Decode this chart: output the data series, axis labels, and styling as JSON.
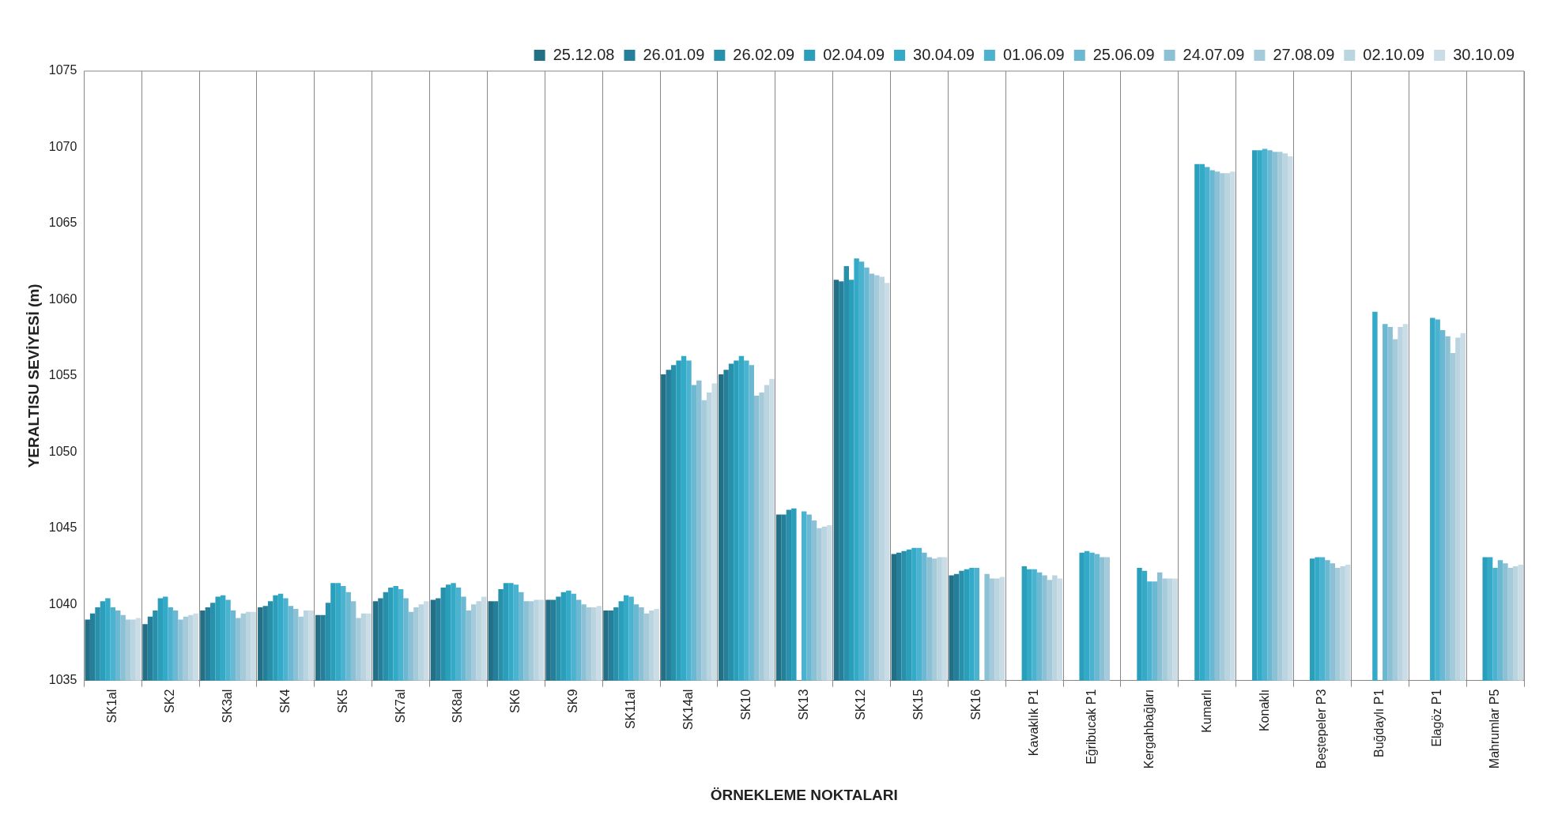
{
  "chart_data": {
    "type": "bar",
    "xlabel": "ÖRNEKLEME NOKTALARI",
    "ylabel": "YERALTISU SEVİYESİ (m)",
    "categories": [
      "SK1al",
      "SK2",
      "SK3al",
      "SK4",
      "SK5",
      "SK7al",
      "SK8al",
      "SK6",
      "SK9",
      "SK11al",
      "SK14al",
      "SK10",
      "SK13",
      "SK12",
      "SK15",
      "SK16",
      "Kavaklık P1",
      "Eğribucak P1",
      "Kergahbağları",
      "Kumarlı",
      "Konaklı",
      "Beştepeler P3",
      "Buğdaylı P1",
      "Elagöz P1",
      "Mahrumlar P5"
    ],
    "ylim": [
      1035,
      1075
    ],
    "yticks": [
      1035,
      1040,
      1045,
      1050,
      1055,
      1060,
      1065,
      1070,
      1075
    ],
    "grid": "x",
    "legend": "top",
    "series": [
      {
        "name": "25.12.08",
        "color": "#226f86",
        "values": [
          1039.0,
          1038.7,
          1039.6,
          1039.8,
          1039.3,
          1040.2,
          1040.3,
          1040.2,
          1040.3,
          1039.6,
          1055.1,
          1055.1,
          1045.9,
          1061.3,
          1043.3,
          1041.9,
          null,
          null,
          null,
          null,
          null,
          null,
          null,
          null,
          null
        ]
      },
      {
        "name": "26.01.09",
        "color": "#24809a",
        "values": [
          1039.4,
          1039.2,
          1039.8,
          1039.9,
          1039.3,
          1040.4,
          1040.4,
          1040.2,
          1040.3,
          1039.6,
          1055.4,
          1055.4,
          1045.9,
          1061.2,
          1043.4,
          1042.0,
          null,
          null,
          null,
          null,
          null,
          null,
          null,
          null,
          null
        ]
      },
      {
        "name": "26.02.09",
        "color": "#2790ab",
        "values": [
          1039.8,
          1039.6,
          1040.1,
          1040.2,
          1040.1,
          1040.8,
          1041.1,
          1041.0,
          1040.5,
          1039.8,
          1055.7,
          1055.8,
          1046.2,
          1062.2,
          1043.5,
          1042.2,
          null,
          null,
          null,
          null,
          null,
          null,
          null,
          null,
          null
        ]
      },
      {
        "name": "02.04.09",
        "color": "#299fbb",
        "values": [
          1040.2,
          1040.4,
          1040.5,
          1040.6,
          1041.4,
          1041.1,
          1041.3,
          1041.4,
          1040.8,
          1040.2,
          1056.0,
          1056.0,
          1046.3,
          1061.3,
          1043.6,
          1042.3,
          1042.5,
          1043.4,
          1042.4,
          1068.9,
          1069.8,
          1043.0,
          null,
          null,
          1043.1
        ]
      },
      {
        "name": "30.04.09",
        "color": "#33aac8",
        "values": [
          1040.4,
          1040.5,
          1040.6,
          1040.7,
          1041.4,
          1041.2,
          1041.4,
          1041.4,
          1040.9,
          1040.6,
          1056.3,
          1056.3,
          null,
          1062.7,
          1043.7,
          1042.4,
          1042.3,
          1043.5,
          1042.2,
          1068.9,
          1069.8,
          1043.1,
          1059.2,
          1058.8,
          1043.1
        ]
      },
      {
        "name": "01.06.09",
        "color": "#4bb3d0",
        "values": [
          1039.8,
          1039.8,
          1040.3,
          1040.4,
          1041.2,
          1041.0,
          1041.1,
          1041.3,
          1040.7,
          1040.5,
          1056.0,
          1056.0,
          1046.1,
          1062.5,
          1043.7,
          1042.4,
          1042.3,
          1043.4,
          1041.5,
          1068.7,
          1069.9,
          1043.1,
          null,
          1058.7,
          1042.4
        ]
      },
      {
        "name": "25.06.09",
        "color": "#6bb8d2",
        "values": [
          1039.6,
          1039.6,
          1039.6,
          1039.9,
          1040.8,
          1040.4,
          1040.5,
          1040.8,
          1040.3,
          1040.0,
          1054.4,
          1055.7,
          1045.9,
          1062.1,
          1043.4,
          null,
          1042.1,
          1043.3,
          1041.5,
          1068.5,
          1069.8,
          1042.9,
          1058.4,
          1058.0,
          1042.9
        ]
      },
      {
        "name": "24.07.09",
        "color": "#8bc0d5",
        "values": [
          1039.3,
          1039.0,
          1039.1,
          1039.7,
          1040.2,
          1039.5,
          1039.6,
          1040.2,
          1040.0,
          1039.8,
          1054.7,
          1053.7,
          1045.5,
          1061.7,
          1043.1,
          1042.0,
          1041.9,
          1043.1,
          1042.1,
          1068.4,
          1069.7,
          1042.7,
          1058.2,
          1057.6,
          1042.7
        ]
      },
      {
        "name": "27.08.09",
        "color": "#a5cbdb",
        "values": [
          1039.0,
          1039.2,
          1039.4,
          1039.2,
          1039.1,
          1039.8,
          1040.0,
          1040.2,
          1039.8,
          1039.4,
          1053.4,
          1053.9,
          1045.0,
          1061.6,
          1043.0,
          1041.7,
          1041.6,
          1043.1,
          1041.7,
          1068.3,
          1069.7,
          1042.4,
          1057.4,
          1056.5,
          1042.4
        ]
      },
      {
        "name": "02.10.09",
        "color": "#bad5e0",
        "values": [
          1039.0,
          1039.3,
          1039.5,
          1039.6,
          1039.4,
          1040.0,
          1040.2,
          1040.3,
          1039.8,
          1039.6,
          1053.9,
          1054.4,
          1045.1,
          1061.5,
          1043.1,
          1041.7,
          1041.9,
          null,
          1041.7,
          1068.3,
          1069.6,
          1042.5,
          1058.2,
          1057.5,
          1042.5
        ]
      },
      {
        "name": "30.10.09",
        "color": "#cadde6",
        "values": [
          1039.1,
          1039.4,
          1039.5,
          1039.6,
          1039.4,
          1040.2,
          1040.5,
          1040.3,
          1039.9,
          1039.7,
          1054.5,
          1054.8,
          1045.2,
          1061.1,
          1043.1,
          1041.8,
          1041.7,
          null,
          1041.7,
          1068.4,
          1069.4,
          1042.6,
          1058.4,
          1057.8,
          1042.6
        ]
      }
    ]
  }
}
